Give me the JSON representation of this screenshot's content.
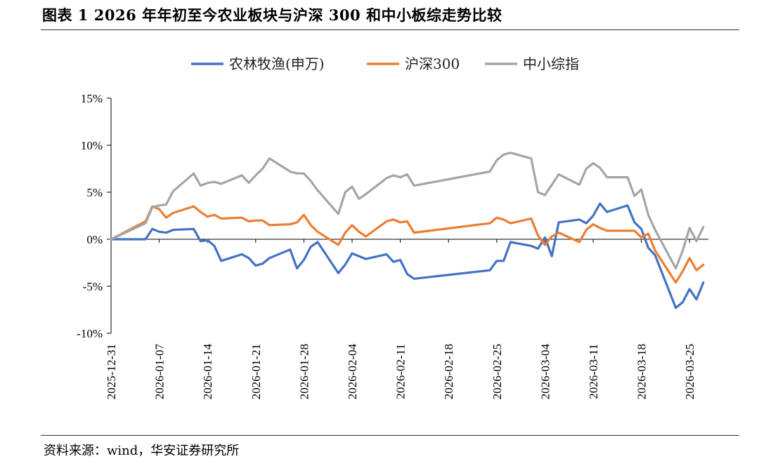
{
  "title": "图表 1 2026 年年初至今农业板块与沪深 300 和中小板综走势比较",
  "source": "资料来源：wind，华安证券研究所",
  "chart_data": {
    "type": "line",
    "ylim": [
      -0.1,
      0.15
    ],
    "y_ticks": [
      {
        "value": 0.15,
        "label": "15%"
      },
      {
        "value": 0.1,
        "label": "10%"
      },
      {
        "value": 0.05,
        "label": "5%"
      },
      {
        "value": 0.0,
        "label": "0%"
      },
      {
        "value": -0.05,
        "label": "-5%"
      },
      {
        "value": -0.1,
        "label": "-10%"
      }
    ],
    "x_ticks": [
      "2025-12-31",
      "2026-01-07",
      "2026-01-14",
      "2026-01-21",
      "2026-01-28",
      "2026-02-04",
      "2026-02-11",
      "2026-02-18",
      "2026-02-25",
      "2026-03-04",
      "2026-03-11",
      "2026-03-18",
      "2026-03-25"
    ],
    "legend_position": "top",
    "series": [
      {
        "name": "农林牧渔(申万)",
        "color": "#4472C4",
        "points": [
          [
            "2025-12-31",
            0.0
          ],
          [
            "2026-01-05",
            0.0
          ],
          [
            "2026-01-06",
            0.011
          ],
          [
            "2026-01-07",
            0.008
          ],
          [
            "2026-01-08",
            0.007
          ],
          [
            "2026-01-09",
            0.01
          ],
          [
            "2026-01-12",
            0.011
          ],
          [
            "2026-01-13",
            -0.002
          ],
          [
            "2026-01-14",
            -0.001
          ],
          [
            "2026-01-15",
            -0.007
          ],
          [
            "2026-01-16",
            -0.023
          ],
          [
            "2026-01-19",
            -0.016
          ],
          [
            "2026-01-20",
            -0.02
          ],
          [
            "2026-01-21",
            -0.028
          ],
          [
            "2026-01-22",
            -0.026
          ],
          [
            "2026-01-23",
            -0.02
          ],
          [
            "2026-01-26",
            -0.011
          ],
          [
            "2026-01-27",
            -0.031
          ],
          [
            "2026-01-28",
            -0.022
          ],
          [
            "2026-01-29",
            -0.008
          ],
          [
            "2026-01-30",
            -0.003
          ],
          [
            "2026-02-02",
            -0.036
          ],
          [
            "2026-02-03",
            -0.027
          ],
          [
            "2026-02-04",
            -0.015
          ],
          [
            "2026-02-05",
            -0.018
          ],
          [
            "2026-02-06",
            -0.021
          ],
          [
            "2026-02-09",
            -0.016
          ],
          [
            "2026-02-10",
            -0.024
          ],
          [
            "2026-02-11",
            -0.022
          ],
          [
            "2026-02-12",
            -0.037
          ],
          [
            "2026-02-13",
            -0.042
          ],
          [
            "2026-02-24",
            -0.033
          ],
          [
            "2026-02-25",
            -0.023
          ],
          [
            "2026-02-26",
            -0.023
          ],
          [
            "2026-02-27",
            -0.003
          ],
          [
            "2026-03-02",
            -0.007
          ],
          [
            "2026-03-03",
            -0.01
          ],
          [
            "2026-03-04",
            0.002
          ],
          [
            "2026-03-05",
            -0.018
          ],
          [
            "2026-03-06",
            0.018
          ],
          [
            "2026-03-09",
            0.021
          ],
          [
            "2026-03-10",
            0.017
          ],
          [
            "2026-03-11",
            0.025
          ],
          [
            "2026-03-12",
            0.038
          ],
          [
            "2026-03-13",
            0.029
          ],
          [
            "2026-03-16",
            0.036
          ],
          [
            "2026-03-17",
            0.018
          ],
          [
            "2026-03-18",
            0.011
          ],
          [
            "2026-03-19",
            -0.009
          ],
          [
            "2026-03-20",
            -0.017
          ],
          [
            "2026-03-23",
            -0.073
          ],
          [
            "2026-03-24",
            -0.067
          ],
          [
            "2026-03-25",
            -0.053
          ],
          [
            "2026-03-26",
            -0.064
          ],
          [
            "2026-03-27",
            -0.046
          ]
        ]
      },
      {
        "name": "沪深300",
        "color": "#ED7D31",
        "points": [
          [
            "2025-12-31",
            0.0
          ],
          [
            "2026-01-05",
            0.019
          ],
          [
            "2026-01-06",
            0.035
          ],
          [
            "2026-01-07",
            0.032
          ],
          [
            "2026-01-08",
            0.023
          ],
          [
            "2026-01-09",
            0.028
          ],
          [
            "2026-01-12",
            0.035
          ],
          [
            "2026-01-13",
            0.029
          ],
          [
            "2026-01-14",
            0.024
          ],
          [
            "2026-01-15",
            0.026
          ],
          [
            "2026-01-16",
            0.022
          ],
          [
            "2026-01-19",
            0.023
          ],
          [
            "2026-01-20",
            0.019
          ],
          [
            "2026-01-21",
            0.02
          ],
          [
            "2026-01-22",
            0.02
          ],
          [
            "2026-01-23",
            0.015
          ],
          [
            "2026-01-26",
            0.016
          ],
          [
            "2026-01-27",
            0.018
          ],
          [
            "2026-01-28",
            0.026
          ],
          [
            "2026-01-29",
            0.015
          ],
          [
            "2026-01-30",
            0.008
          ],
          [
            "2026-02-02",
            -0.006
          ],
          [
            "2026-02-03",
            0.007
          ],
          [
            "2026-02-04",
            0.015
          ],
          [
            "2026-02-05",
            0.008
          ],
          [
            "2026-02-06",
            0.003
          ],
          [
            "2026-02-09",
            0.019
          ],
          [
            "2026-02-10",
            0.021
          ],
          [
            "2026-02-11",
            0.018
          ],
          [
            "2026-02-12",
            0.019
          ],
          [
            "2026-02-13",
            0.007
          ],
          [
            "2026-02-24",
            0.017
          ],
          [
            "2026-02-25",
            0.023
          ],
          [
            "2026-02-26",
            0.021
          ],
          [
            "2026-02-27",
            0.017
          ],
          [
            "2026-03-02",
            0.022
          ],
          [
            "2026-03-03",
            0.004
          ],
          [
            "2026-03-04",
            -0.006
          ],
          [
            "2026-03-05",
            0.003
          ],
          [
            "2026-03-06",
            0.007
          ],
          [
            "2026-03-09",
            -0.003
          ],
          [
            "2026-03-10",
            0.01
          ],
          [
            "2026-03-11",
            0.016
          ],
          [
            "2026-03-12",
            0.012
          ],
          [
            "2026-03-13",
            0.009
          ],
          [
            "2026-03-16",
            0.009
          ],
          [
            "2026-03-17",
            0.009
          ],
          [
            "2026-03-18",
            0.002
          ],
          [
            "2026-03-19",
            0.006
          ],
          [
            "2026-03-20",
            -0.012
          ],
          [
            "2026-03-23",
            -0.046
          ],
          [
            "2026-03-24",
            -0.034
          ],
          [
            "2026-03-25",
            -0.02
          ],
          [
            "2026-03-26",
            -0.033
          ],
          [
            "2026-03-27",
            -0.027
          ]
        ]
      },
      {
        "name": "中小综指",
        "color": "#A5A5A5",
        "points": [
          [
            "2025-12-31",
            0.0
          ],
          [
            "2026-01-05",
            0.017
          ],
          [
            "2026-01-06",
            0.034
          ],
          [
            "2026-01-07",
            0.036
          ],
          [
            "2026-01-08",
            0.037
          ],
          [
            "2026-01-09",
            0.051
          ],
          [
            "2026-01-12",
            0.07
          ],
          [
            "2026-01-13",
            0.057
          ],
          [
            "2026-01-14",
            0.06
          ],
          [
            "2026-01-15",
            0.061
          ],
          [
            "2026-01-16",
            0.059
          ],
          [
            "2026-01-19",
            0.068
          ],
          [
            "2026-01-20",
            0.06
          ],
          [
            "2026-01-21",
            0.068
          ],
          [
            "2026-01-22",
            0.075
          ],
          [
            "2026-01-23",
            0.086
          ],
          [
            "2026-01-26",
            0.072
          ],
          [
            "2026-01-27",
            0.07
          ],
          [
            "2026-01-28",
            0.07
          ],
          [
            "2026-01-29",
            0.062
          ],
          [
            "2026-01-30",
            0.052
          ],
          [
            "2026-02-02",
            0.027
          ],
          [
            "2026-02-03",
            0.05
          ],
          [
            "2026-02-04",
            0.056
          ],
          [
            "2026-02-05",
            0.043
          ],
          [
            "2026-02-06",
            0.048
          ],
          [
            "2026-02-09",
            0.065
          ],
          [
            "2026-02-10",
            0.068
          ],
          [
            "2026-02-11",
            0.066
          ],
          [
            "2026-02-12",
            0.069
          ],
          [
            "2026-02-13",
            0.057
          ],
          [
            "2026-02-24",
            0.072
          ],
          [
            "2026-02-25",
            0.084
          ],
          [
            "2026-02-26",
            0.09
          ],
          [
            "2026-02-27",
            0.092
          ],
          [
            "2026-03-02",
            0.086
          ],
          [
            "2026-03-03",
            0.05
          ],
          [
            "2026-03-04",
            0.047
          ],
          [
            "2026-03-05",
            0.058
          ],
          [
            "2026-03-06",
            0.069
          ],
          [
            "2026-03-09",
            0.058
          ],
          [
            "2026-03-10",
            0.075
          ],
          [
            "2026-03-11",
            0.081
          ],
          [
            "2026-03-12",
            0.076
          ],
          [
            "2026-03-13",
            0.066
          ],
          [
            "2026-03-16",
            0.066
          ],
          [
            "2026-03-17",
            0.046
          ],
          [
            "2026-03-18",
            0.053
          ],
          [
            "2026-03-19",
            0.026
          ],
          [
            "2026-03-20",
            0.01
          ],
          [
            "2026-03-23",
            -0.031
          ],
          [
            "2026-03-24",
            -0.012
          ],
          [
            "2026-03-25",
            0.012
          ],
          [
            "2026-03-26",
            -0.002
          ],
          [
            "2026-03-27",
            0.013
          ]
        ]
      }
    ]
  }
}
